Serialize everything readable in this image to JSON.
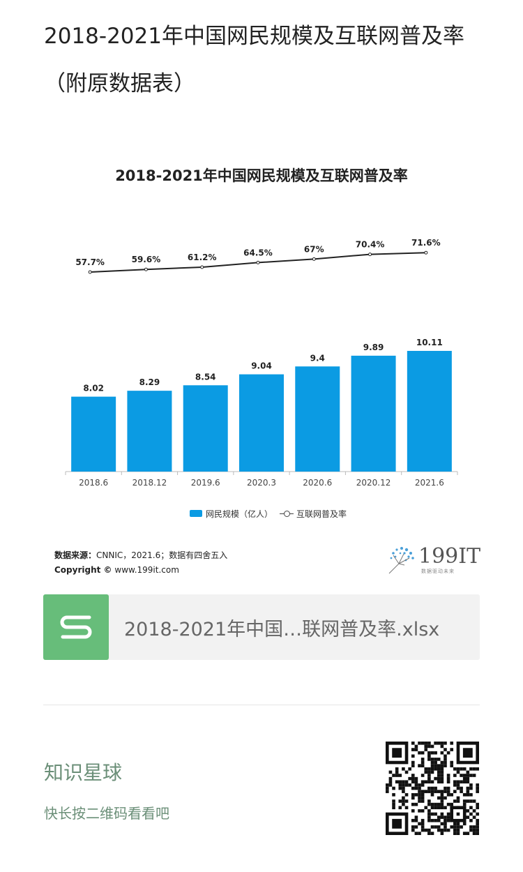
{
  "article": {
    "title": "2018-2021年中国网民规模及互联网普及率（附原数据表）"
  },
  "chart_data": {
    "type": "bar+line",
    "title": "2018-2021年中国网民规模及互联网普及率",
    "categories": [
      "2018.6",
      "2018.12",
      "2019.6",
      "2020.3",
      "2020.6",
      "2020.12",
      "2021.6"
    ],
    "series": [
      {
        "name": "网民规模（亿人）",
        "type": "bar",
        "color": "#0b9be3",
        "values": [
          8.02,
          8.29,
          8.54,
          9.04,
          9.4,
          9.89,
          10.11
        ],
        "labels": [
          "8.02",
          "8.29",
          "8.54",
          "9.04",
          "9.4",
          "9.89",
          "10.11"
        ]
      },
      {
        "name": "互联网普及率",
        "type": "line",
        "color": "#222222",
        "values": [
          57.7,
          59.6,
          61.2,
          64.5,
          67,
          70.4,
          71.6
        ],
        "labels": [
          "57.7%",
          "59.6%",
          "61.2%",
          "64.5%",
          "67%",
          "70.4%",
          "71.6%"
        ]
      }
    ],
    "legend": [
      "网民规模（亿人）",
      "互联网普及率"
    ],
    "legend_position": "bottom",
    "grid": false
  },
  "source": {
    "label": "数据来源：",
    "text": "CNNIC，2021.6；数据有四舍五入",
    "copyright_label": "Copyright ©",
    "copyright_text": "www.199it.com"
  },
  "logo": {
    "text": "199IT",
    "subtitle": "数据驱动未来"
  },
  "file_card": {
    "icon": "spreadsheet-s-icon",
    "icon_color": "#67bd7a",
    "filename": "2018-2021年中国…联网普及率.xlsx"
  },
  "planet": {
    "title": "知识星球",
    "subtitle": "快长按二维码看看吧",
    "accent": "#6b8f78",
    "qr_icon": "qr-code-icon"
  }
}
